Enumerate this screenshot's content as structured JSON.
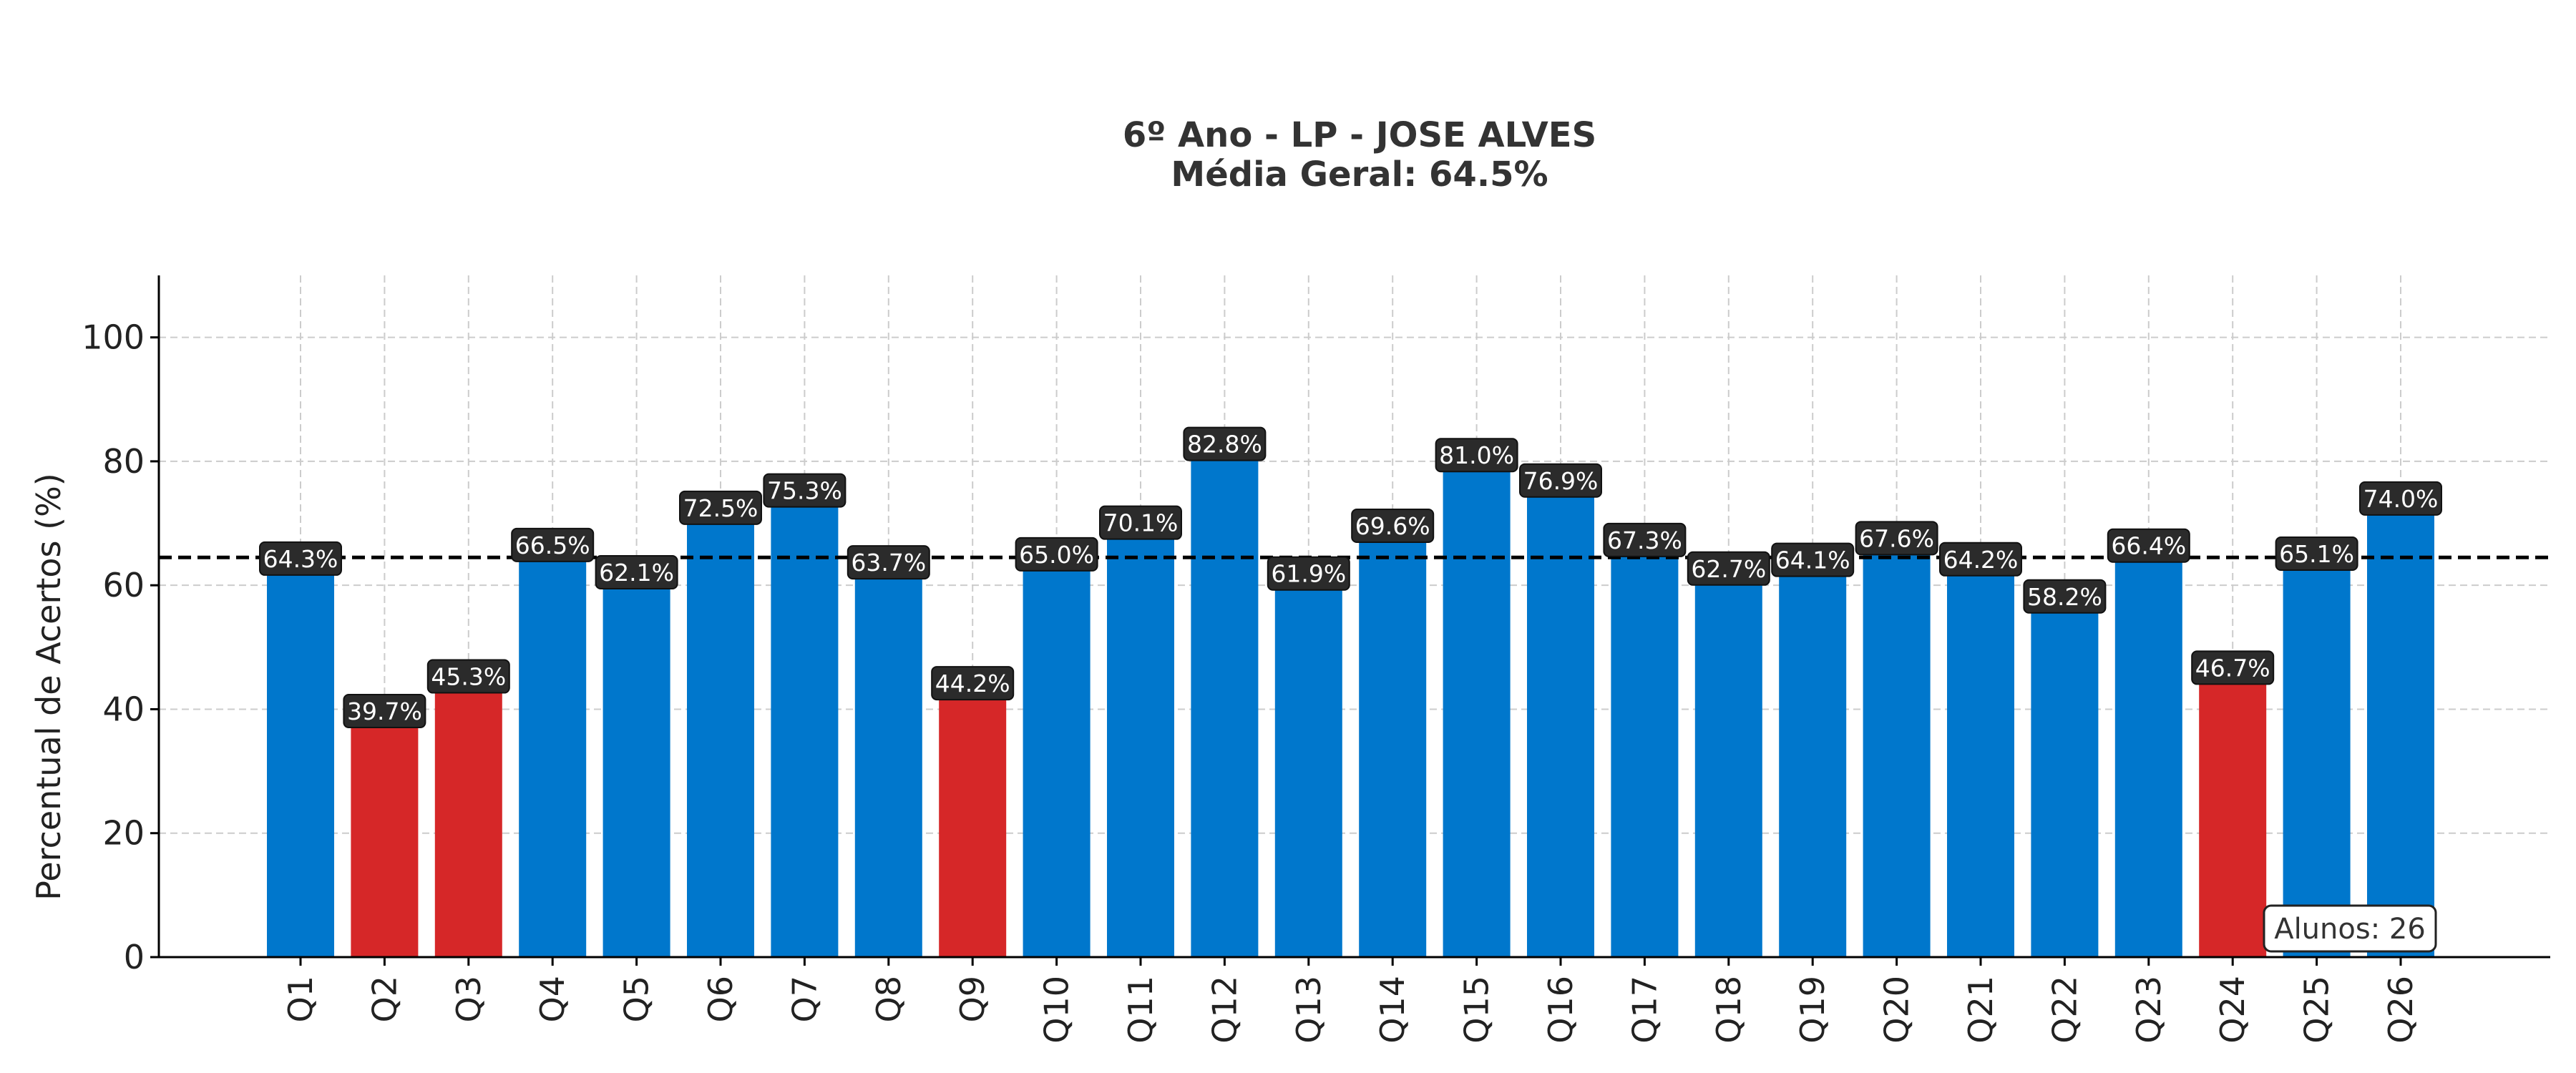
{
  "chart_data": {
    "type": "bar",
    "title": "6º Ano - LP - JOSE ALVES",
    "subtitle": "Média Geral: 64.5%",
    "xlabel": "",
    "ylabel": "Percentual de Acertos (%)",
    "ylim": [
      0,
      110
    ],
    "yticks": [
      0,
      20,
      40,
      60,
      80,
      100
    ],
    "grid": true,
    "categories": [
      "Q1",
      "Q2",
      "Q3",
      "Q4",
      "Q5",
      "Q6",
      "Q7",
      "Q8",
      "Q9",
      "Q10",
      "Q11",
      "Q12",
      "Q13",
      "Q14",
      "Q15",
      "Q16",
      "Q17",
      "Q18",
      "Q19",
      "Q20",
      "Q21",
      "Q22",
      "Q23",
      "Q24",
      "Q25",
      "Q26"
    ],
    "values": [
      64.3,
      39.7,
      45.3,
      66.5,
      62.1,
      72.5,
      75.3,
      63.7,
      44.2,
      65.0,
      70.1,
      82.8,
      61.9,
      69.6,
      81.0,
      76.9,
      67.3,
      62.7,
      64.1,
      67.6,
      64.2,
      58.2,
      66.4,
      46.7,
      65.1,
      74.0
    ],
    "value_labels": [
      "64.3%",
      "39.7%",
      "45.3%",
      "66.5%",
      "62.1%",
      "72.5%",
      "75.3%",
      "63.7%",
      "44.2%",
      "65.0%",
      "70.1%",
      "82.8%",
      "61.9%",
      "69.6%",
      "81.0%",
      "76.9%",
      "67.3%",
      "62.7%",
      "64.1%",
      "67.6%",
      "64.2%",
      "58.2%",
      "66.4%",
      "46.7%",
      "65.1%",
      "74.0%"
    ],
    "mean_line": 64.5,
    "threshold": 50,
    "colors": {
      "above": "#0077cc",
      "below": "#d62728",
      "mean_line": "#000000",
      "label_bg": "#2b2b2b",
      "grid": "#cccccc"
    },
    "annotation": "Alunos: 26"
  }
}
